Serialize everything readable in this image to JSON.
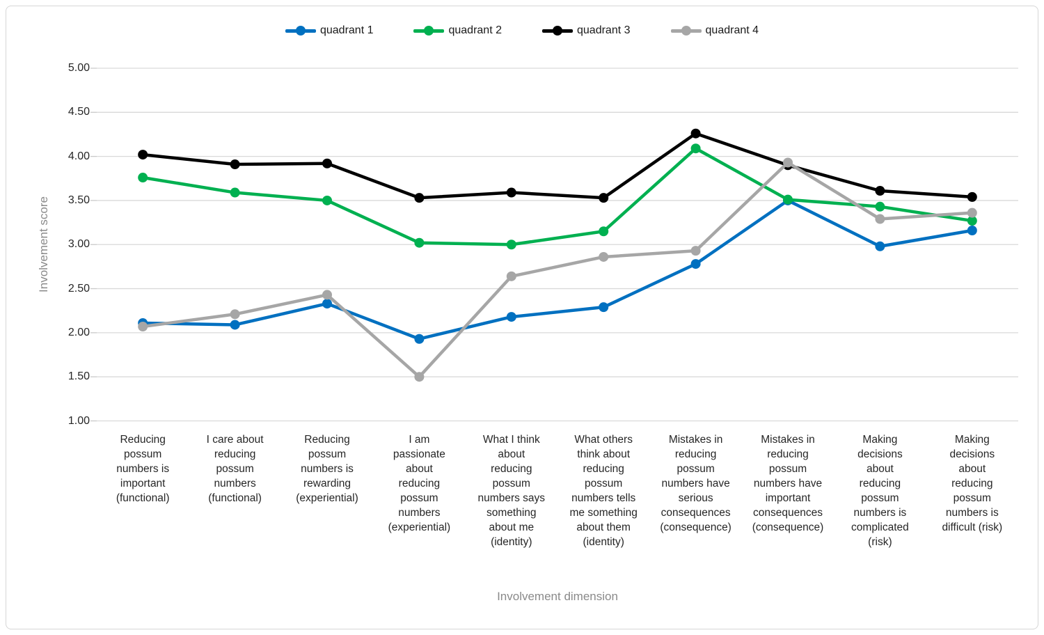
{
  "chart_data": {
    "type": "line",
    "title": "",
    "xlabel": "Involvement dimension",
    "ylabel": "Involvement score",
    "ylim": [
      1,
      5
    ],
    "grid": "horizontal",
    "legend_position": "top",
    "yticks": [
      {
        "value": 5.0,
        "label": "5.00"
      },
      {
        "value": 4.5,
        "label": "4.50"
      },
      {
        "value": 4.0,
        "label": "4.00"
      },
      {
        "value": 3.5,
        "label": "3.50"
      },
      {
        "value": 3.0,
        "label": "3.00"
      },
      {
        "value": 2.5,
        "label": "2.50"
      },
      {
        "value": 2.0,
        "label": "2.00"
      },
      {
        "value": 1.5,
        "label": "1.50"
      },
      {
        "value": 1.0,
        "label": "1.00"
      }
    ],
    "categories": [
      {
        "label": "Reducing possum numbers is important (functional)",
        "lines": [
          "Reducing",
          "possum",
          "numbers is",
          "important",
          "(functional)"
        ]
      },
      {
        "label": "I care about reducing possum numbers (functional)",
        "lines": [
          "I care about",
          "reducing",
          "possum",
          "numbers",
          "(functional)"
        ]
      },
      {
        "label": "Reducing possum numbers is rewarding (experiential)",
        "lines": [
          "Reducing",
          "possum",
          "numbers is",
          "rewarding",
          "(experiential)"
        ]
      },
      {
        "label": "I am passionate about reducing possum numbers (experiential)",
        "lines": [
          "I am",
          "passionate",
          "about",
          "reducing",
          "possum",
          "numbers",
          "(experiential)"
        ]
      },
      {
        "label": "What I think about reducing possum numbers says something about me (identity)",
        "lines": [
          "What I think",
          "about",
          "reducing",
          "possum",
          "numbers says",
          "something",
          "about me",
          "(identity)"
        ]
      },
      {
        "label": "What others think about reducing possum numbers tells me something about them (identity)",
        "lines": [
          "What others",
          "think about",
          "reducing",
          "possum",
          "numbers tells",
          "me something",
          "about them",
          "(identity)"
        ]
      },
      {
        "label": "Mistakes in reducing possum numbers have serious consequences (consequence)",
        "lines": [
          "Mistakes in",
          "reducing",
          "possum",
          "numbers have",
          "serious",
          "consequences",
          "(consequence)"
        ]
      },
      {
        "label": "Mistakes in reducing possum numbers have important consequences (consequence)",
        "lines": [
          "Mistakes in",
          "reducing",
          "possum",
          "numbers have",
          "important",
          "consequences",
          "(consequence)"
        ]
      },
      {
        "label": "Making decisions about reducing possum numbers is complicated (risk)",
        "lines": [
          "Making",
          "decisions",
          "about",
          "reducing",
          "possum",
          "numbers is",
          "complicated",
          "(risk)"
        ]
      },
      {
        "label": "Making decisions about reducing possum numbers is difficult (risk)",
        "lines": [
          "Making",
          "decisions",
          "about",
          "reducing",
          "possum",
          "numbers is",
          "difficult (risk)"
        ]
      }
    ],
    "series": [
      {
        "name": "quadrant 1",
        "color": "#0070C0",
        "values": [
          2.11,
          2.09,
          2.33,
          1.93,
          2.18,
          2.29,
          2.78,
          3.5,
          2.98,
          3.16
        ]
      },
      {
        "name": "quadrant 2",
        "color": "#00B050",
        "values": [
          3.76,
          3.59,
          3.5,
          3.02,
          3.0,
          3.15,
          4.09,
          3.51,
          3.43,
          3.27
        ]
      },
      {
        "name": "quadrant 3",
        "color": "#000000",
        "values": [
          4.02,
          3.91,
          3.92,
          3.53,
          3.59,
          3.53,
          4.26,
          3.9,
          3.61,
          3.54
        ]
      },
      {
        "name": "quadrant 4",
        "color": "#A6A6A6",
        "values": [
          2.07,
          2.21,
          2.43,
          1.5,
          2.64,
          2.86,
          2.93,
          3.93,
          3.29,
          3.36
        ]
      }
    ],
    "style": {
      "gridline_color": "#d9d9d9",
      "tick_color": "#c9c9c9",
      "line_width": 4.5,
      "marker_radius": 7
    }
  },
  "legend": {
    "items": [
      {
        "label": "quadrant 1"
      },
      {
        "label": "quadrant 2"
      },
      {
        "label": "quadrant 3"
      },
      {
        "label": "quadrant 4"
      }
    ]
  },
  "axes": {
    "y_title": "Involvement score",
    "x_title": "Involvement dimension"
  }
}
